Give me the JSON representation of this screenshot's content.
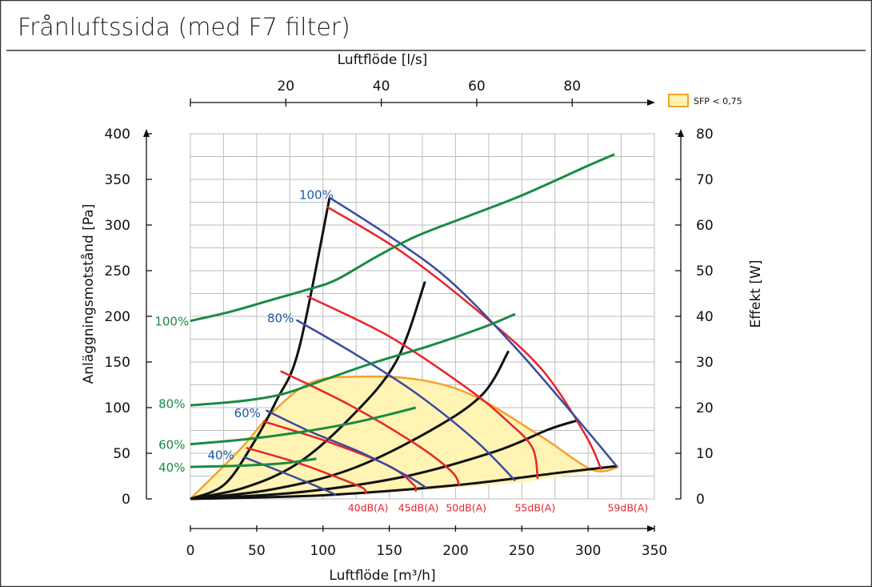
{
  "title": "Frånluftssida (med F7 filter)",
  "chart_data": {
    "type": "line",
    "title": "Frånluftssida (med F7 filter)",
    "xlabel": "Luftflöde [m³/h]",
    "x_top_label": "Luftflöde [l/s]",
    "ylabel_left": "Anläggningsmotstånd [Pa]",
    "ylabel_right": "Effekt [W]",
    "xlim": [
      0,
      350
    ],
    "xticks": [
      0,
      50,
      100,
      150,
      200,
      250,
      300,
      350
    ],
    "ylim_left": [
      0,
      400
    ],
    "yticks_left": [
      0,
      50,
      100,
      150,
      200,
      250,
      300,
      350,
      400
    ],
    "ylim_right": [
      0,
      80
    ],
    "yticks_right": [
      0,
      10,
      20,
      30,
      40,
      50,
      60,
      70,
      80
    ],
    "x_top_ticks": [
      20,
      40,
      60,
      80
    ],
    "grid": true,
    "legend": {
      "label": "SFP < 0,75",
      "position": "top-right",
      "fill": "#fff3b0",
      "border": "#f5a22a"
    },
    "colors": {
      "fan": "#3b4aa0",
      "sound": "#e8242b",
      "power": "#1a8a44",
      "system": "#111111",
      "sfp_fill": "#fff3b0",
      "sfp_border": "#f5a22a",
      "fan_label": "#1d5aa8",
      "power_label": "#1a8a44",
      "sound_label": "#e8242b"
    },
    "sfp_region": [
      [
        0,
        0
      ],
      [
        38,
        55
      ],
      [
        62,
        95
      ],
      [
        92,
        128
      ],
      [
        130,
        134
      ],
      [
        175,
        130
      ],
      [
        215,
        112
      ],
      [
        265,
        68
      ],
      [
        303,
        32
      ],
      [
        323,
        35
      ],
      [
        250,
        18
      ],
      [
        170,
        9
      ],
      [
        100,
        4
      ],
      [
        0,
        0
      ]
    ],
    "fan_curves": [
      {
        "label": "100%",
        "label_at": [
          95,
          333
        ],
        "points": [
          [
            105,
            330
          ],
          [
            150,
            288
          ],
          [
            195,
            240
          ],
          [
            245,
            166
          ],
          [
            295,
            82
          ],
          [
            322,
            35
          ]
        ]
      },
      {
        "label": "80%",
        "label_at": [
          68,
          198
        ],
        "points": [
          [
            80,
            196
          ],
          [
            125,
            158
          ],
          [
            170,
            116
          ],
          [
            215,
            64
          ],
          [
            245,
            20
          ]
        ]
      },
      {
        "label": "60%",
        "label_at": [
          43,
          94
        ],
        "points": [
          [
            57,
            97
          ],
          [
            90,
            74
          ],
          [
            130,
            50
          ],
          [
            165,
            24
          ],
          [
            178,
            12
          ]
        ]
      },
      {
        "label": "40%",
        "label_at": [
          23,
          48
        ],
        "points": [
          [
            40,
            46
          ],
          [
            75,
            26
          ],
          [
            103,
            9
          ],
          [
            110,
            4
          ]
        ]
      }
    ],
    "sound_curves": [
      {
        "label": "40dB(A)",
        "points": [
          [
            42,
            56
          ],
          [
            80,
            40
          ],
          [
            110,
            24
          ],
          [
            130,
            12
          ],
          [
            132,
            5
          ]
        ]
      },
      {
        "label": "45dB(A)",
        "points": [
          [
            55,
            85
          ],
          [
            105,
            62
          ],
          [
            150,
            36
          ],
          [
            168,
            16
          ],
          [
            170,
            8
          ]
        ]
      },
      {
        "label": "50dB(A)",
        "points": [
          [
            68,
            140
          ],
          [
            120,
            103
          ],
          [
            170,
            60
          ],
          [
            197,
            30
          ],
          [
            203,
            14
          ]
        ]
      },
      {
        "label": "55dB(A)",
        "points": [
          [
            88,
            222
          ],
          [
            150,
            178
          ],
          [
            210,
            120
          ],
          [
            240,
            84
          ],
          [
            258,
            56
          ],
          [
            262,
            22
          ]
        ]
      },
      {
        "label": "59dB(A)",
        "points": [
          [
            103,
            320
          ],
          [
            160,
            270
          ],
          [
            220,
            202
          ],
          [
            265,
            142
          ],
          [
            298,
            70
          ],
          [
            310,
            32
          ]
        ]
      }
    ],
    "system_curves": [
      {
        "points": [
          [
            0,
            0
          ],
          [
            25,
            15
          ],
          [
            45,
            55
          ],
          [
            65,
            108
          ],
          [
            82,
            165
          ],
          [
            105,
            330
          ]
        ]
      },
      {
        "points": [
          [
            0,
            0
          ],
          [
            40,
            12
          ],
          [
            80,
            38
          ],
          [
            120,
            88
          ],
          [
            155,
            150
          ],
          [
            177,
            238
          ]
        ]
      },
      {
        "points": [
          [
            0,
            0
          ],
          [
            60,
            10
          ],
          [
            120,
            32
          ],
          [
            180,
            74
          ],
          [
            220,
            114
          ],
          [
            240,
            162
          ]
        ]
      },
      {
        "points": [
          [
            0,
            0
          ],
          [
            80,
            7
          ],
          [
            160,
            24
          ],
          [
            230,
            52
          ],
          [
            270,
            76
          ],
          [
            292,
            86
          ]
        ]
      },
      {
        "points": [
          [
            0,
            0
          ],
          [
            100,
            4
          ],
          [
            200,
            15
          ],
          [
            280,
            29
          ],
          [
            322,
            36
          ]
        ]
      }
    ],
    "sound_label_positions": [
      [
        134,
        -10
      ],
      [
        172,
        -10
      ],
      [
        208,
        -10
      ],
      [
        260,
        -10
      ],
      [
        330,
        -10
      ]
    ],
    "power_curves": [
      {
        "label": "100%",
        "label_at": [
          -14,
          39
        ],
        "points": [
          [
            0,
            39
          ],
          [
            30,
            41
          ],
          [
            60,
            43.5
          ],
          [
            90,
            46
          ],
          [
            110,
            48
          ],
          [
            140,
            53
          ],
          [
            170,
            57.5
          ],
          [
            210,
            62
          ],
          [
            250,
            66.5
          ],
          [
            300,
            73
          ],
          [
            320,
            75.5
          ]
        ]
      },
      {
        "label": "80%",
        "label_at": [
          -14,
          21
        ],
        "points": [
          [
            0,
            20.5
          ],
          [
            40,
            21.5
          ],
          [
            70,
            23
          ],
          [
            100,
            26
          ],
          [
            140,
            30
          ],
          [
            180,
            33.5
          ],
          [
            220,
            37.5
          ],
          [
            245,
            40.5
          ]
        ]
      },
      {
        "label": "60%",
        "label_at": [
          -14,
          12
        ],
        "points": [
          [
            0,
            12
          ],
          [
            40,
            13
          ],
          [
            80,
            14.5
          ],
          [
            120,
            16.5
          ],
          [
            150,
            18.5
          ],
          [
            170,
            20
          ]
        ]
      },
      {
        "label": "40%",
        "label_at": [
          -14,
          7
        ],
        "points": [
          [
            0,
            7
          ],
          [
            40,
            7.3
          ],
          [
            70,
            7.8
          ],
          [
            95,
            8.8
          ]
        ]
      }
    ]
  }
}
